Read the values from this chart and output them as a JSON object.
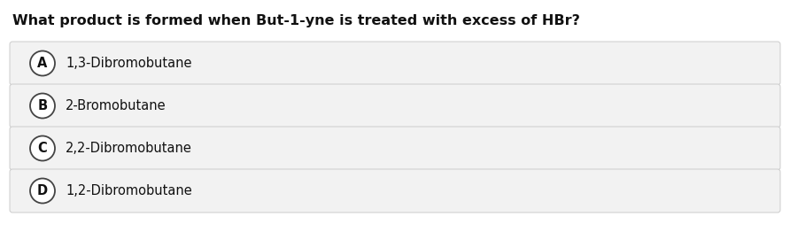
{
  "title": "What product is formed when But-1-yne is treated with excess of HBr?",
  "options": [
    {
      "label": "A",
      "text": "1,3-Dibromobutane"
    },
    {
      "label": "B",
      "text": "2-Bromobutane"
    },
    {
      "label": "C",
      "text": "2,2-Dibromobutane"
    },
    {
      "label": "D",
      "text": "1,2-Dibromobutane"
    }
  ],
  "bg_color": "#ffffff",
  "option_box_color": "#f2f2f2",
  "option_box_edge_color": "#cccccc",
  "title_fontsize": 11.5,
  "option_fontsize": 10.5,
  "label_fontsize": 10.5,
  "text_color": "#111111",
  "circle_edge_color": "#444444",
  "circle_face_color": "#ffffff",
  "fig_width": 8.92,
  "fig_height": 2.62,
  "dpi": 100
}
